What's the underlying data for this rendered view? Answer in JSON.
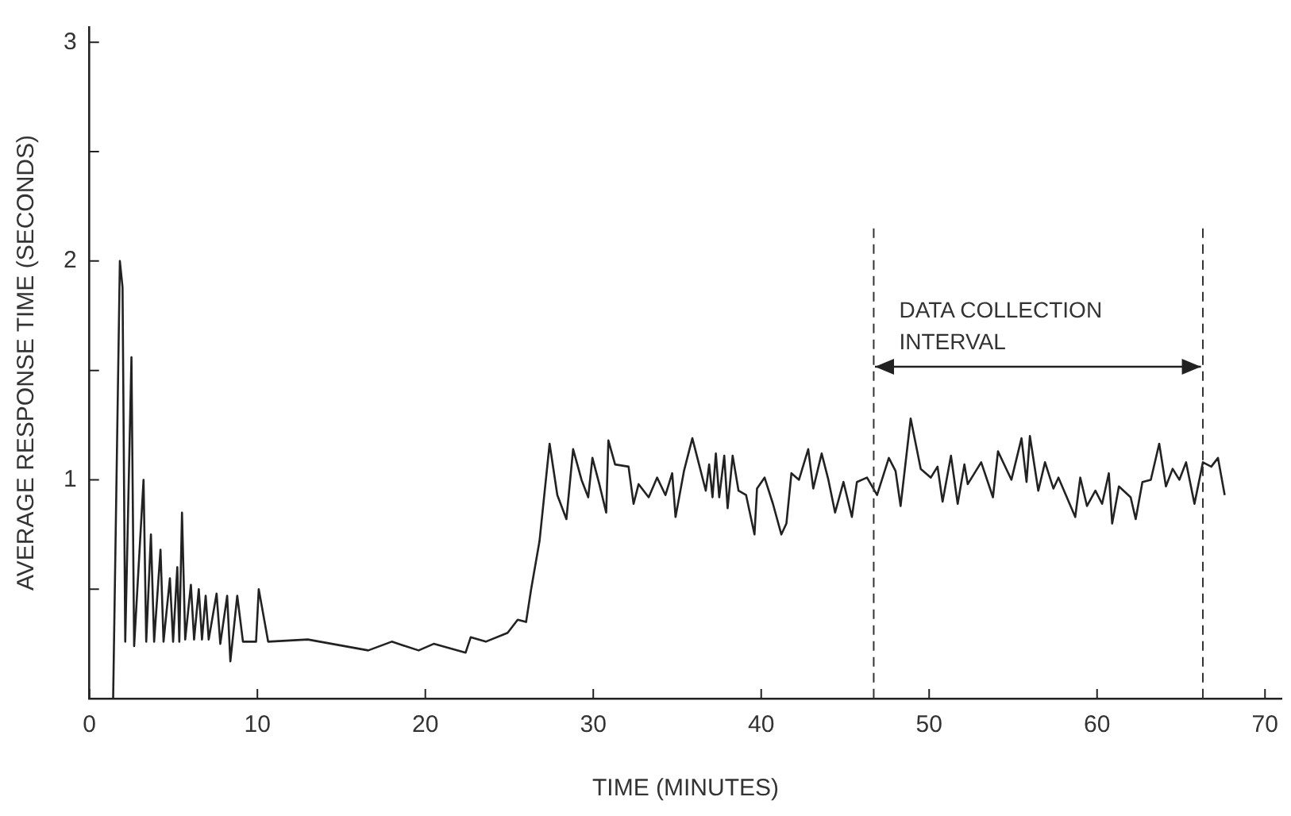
{
  "chart_data": {
    "type": "line",
    "xlabel": "TIME (MINUTES)",
    "ylabel": "AVERAGE RESPONSE TIME (SECONDS)",
    "xlim": [
      0,
      71
    ],
    "xticks": [
      0,
      10,
      20,
      30,
      40,
      50,
      60,
      70
    ],
    "ylim": [
      0,
      3.07
    ],
    "yticks": [
      {
        "value": 0.5,
        "label": null
      },
      1,
      {
        "value": 1.5,
        "label": null
      },
      2,
      {
        "value": 2.5,
        "label": null
      },
      3
    ],
    "grid": false,
    "legend": false,
    "marker": "none",
    "line_style": "solid",
    "ref_lines": [
      {
        "axis": "x",
        "value": 46.7,
        "line_style": "dashed"
      },
      {
        "axis": "x",
        "value": 66.3,
        "line_style": "dashed"
      }
    ],
    "annotations": [
      {
        "text": "DATA COLLECTION INTERVAL",
        "x": 46.7,
        "y": 1.56
      }
    ],
    "series": [
      {
        "color": "#222222",
        "x": [
          1.41,
          1.81,
          1.97,
          2.13,
          2.5,
          2.66,
          3.22,
          3.38,
          3.66,
          3.85,
          4.23,
          4.41,
          4.79,
          4.98,
          5.23,
          5.35,
          5.51,
          5.7,
          6.04,
          6.23,
          6.51,
          6.7,
          6.92,
          7.1,
          7.57,
          7.79,
          8.2,
          8.39,
          8.8,
          9.14,
          9.92,
          10.08,
          10.64,
          13.0,
          16.6,
          18.0,
          19.6,
          20.5,
          22.4,
          22.7,
          23.6,
          24.9,
          25.5,
          26.0,
          26.3,
          26.8,
          27.4,
          27.86,
          28.4,
          28.8,
          29.3,
          29.7,
          29.95,
          30.36,
          30.77,
          30.9,
          31.3,
          32.1,
          32.4,
          32.7,
          33.3,
          33.8,
          34.3,
          34.7,
          34.9,
          35.4,
          35.9,
          36.3,
          36.7,
          36.9,
          37.1,
          37.3,
          37.5,
          37.8,
          38.0,
          38.3,
          38.65,
          39.1,
          39.6,
          39.75,
          40.2,
          40.7,
          41.2,
          41.5,
          41.8,
          42.25,
          42.8,
          43.1,
          43.6,
          44.0,
          44.4,
          44.9,
          45.4,
          45.7,
          46.3,
          46.9,
          47.6,
          48.0,
          48.3,
          48.9,
          49.5,
          50.1,
          50.5,
          50.8,
          51.3,
          51.7,
          52.1,
          52.3,
          53.1,
          53.8,
          54.1,
          54.9,
          55.5,
          55.8,
          56.0,
          56.5,
          56.9,
          57.4,
          57.7,
          58.7,
          59.0,
          59.4,
          59.9,
          60.3,
          60.7,
          60.9,
          61.3,
          62.0,
          62.3,
          62.7,
          63.2,
          63.7,
          64.1,
          64.5,
          64.9,
          65.3,
          65.8,
          66.3,
          66.8,
          67.2,
          67.6
        ],
        "values": [
          0,
          2.0,
          1.88,
          0.26,
          1.56,
          0.24,
          1.0,
          0.26,
          0.75,
          0.26,
          0.68,
          0.26,
          0.55,
          0.26,
          0.6,
          0.26,
          0.85,
          0.27,
          0.52,
          0.27,
          0.5,
          0.27,
          0.47,
          0.27,
          0.48,
          0.25,
          0.47,
          0.17,
          0.47,
          0.26,
          0.26,
          0.5,
          0.26,
          0.27,
          0.22,
          0.26,
          0.22,
          0.25,
          0.21,
          0.28,
          0.26,
          0.3,
          0.36,
          0.35,
          0.5,
          0.72,
          1.165,
          0.93,
          0.82,
          1.14,
          1.0,
          0.92,
          1.1,
          0.98,
          0.85,
          1.18,
          1.07,
          1.06,
          0.89,
          0.98,
          0.92,
          1.01,
          0.93,
          1.03,
          0.83,
          1.04,
          1.19,
          1.07,
          0.95,
          1.07,
          0.92,
          1.12,
          0.92,
          1.11,
          0.87,
          1.11,
          0.95,
          0.93,
          0.75,
          0.96,
          1.01,
          0.89,
          0.75,
          0.8,
          1.03,
          1.0,
          1.14,
          0.96,
          1.12,
          1.0,
          0.85,
          0.99,
          0.83,
          0.99,
          1.01,
          0.93,
          1.1,
          1.04,
          0.88,
          1.28,
          1.05,
          1.01,
          1.06,
          0.9,
          1.11,
          0.89,
          1.07,
          0.98,
          1.08,
          0.92,
          1.13,
          1.0,
          1.19,
          0.99,
          1.2,
          0.95,
          1.08,
          0.96,
          1.01,
          0.83,
          1.01,
          0.88,
          0.95,
          0.89,
          1.03,
          0.8,
          0.97,
          0.92,
          0.82,
          0.99,
          1.0,
          1.165,
          0.97,
          1.05,
          1.0,
          1.08,
          0.89,
          1.08,
          1.06,
          1.1,
          0.93
        ]
      }
    ]
  }
}
